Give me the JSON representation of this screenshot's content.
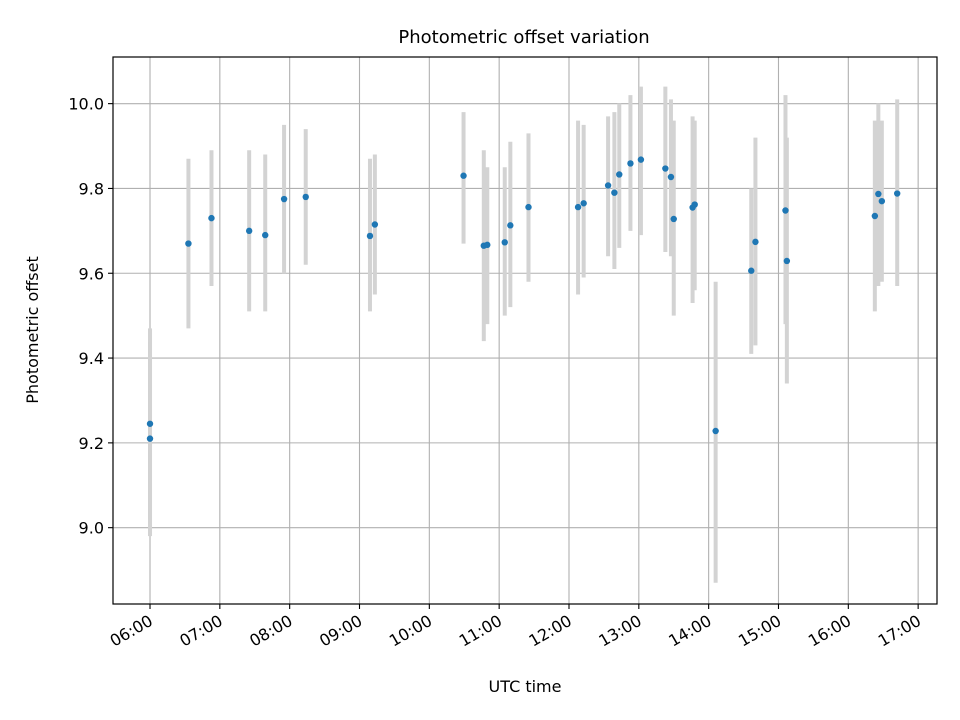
{
  "chart_data": {
    "type": "scatter",
    "title": "Photometric offset variation",
    "xlabel": "UTC time",
    "ylabel": "Photometric offset",
    "x_unit": "hours UTC",
    "xlim": [
      5.47,
      17.27
    ],
    "ylim": [
      8.82,
      10.11
    ],
    "x_ticks": [
      6,
      7,
      8,
      9,
      10,
      11,
      12,
      13,
      14,
      15,
      16,
      17
    ],
    "x_tick_labels": [
      "06:00",
      "07:00",
      "08:00",
      "09:00",
      "10:00",
      "11:00",
      "12:00",
      "13:00",
      "14:00",
      "15:00",
      "16:00",
      "17:00"
    ],
    "y_ticks": [
      9.0,
      9.2,
      9.4,
      9.6,
      9.8,
      10.0
    ],
    "y_tick_labels": [
      "9.0",
      "9.2",
      "9.4",
      "9.6",
      "9.8",
      "10.0"
    ],
    "grid": true,
    "colors": {
      "point": "#1f77b4",
      "errorbar": "#d3d3d3",
      "grid": "#b0b0b0"
    },
    "series": [
      {
        "points": [
          {
            "x": 6.0,
            "y": 9.245,
            "lo": 9.02,
            "hi": 9.47
          },
          {
            "x": 6.0,
            "y": 9.21,
            "lo": 8.98,
            "hi": 9.44
          },
          {
            "x": 6.55,
            "y": 9.67,
            "lo": 9.47,
            "hi": 9.87
          },
          {
            "x": 6.88,
            "y": 9.73,
            "lo": 9.57,
            "hi": 9.89
          },
          {
            "x": 7.42,
            "y": 9.7,
            "lo": 9.51,
            "hi": 9.89
          },
          {
            "x": 7.65,
            "y": 9.69,
            "lo": 9.51,
            "hi": 9.88
          },
          {
            "x": 7.92,
            "y": 9.775,
            "lo": 9.6,
            "hi": 9.95
          },
          {
            "x": 8.23,
            "y": 9.78,
            "lo": 9.62,
            "hi": 9.94
          },
          {
            "x": 9.15,
            "y": 9.688,
            "lo": 9.51,
            "hi": 9.87
          },
          {
            "x": 9.22,
            "y": 9.715,
            "lo": 9.55,
            "hi": 9.88
          },
          {
            "x": 10.49,
            "y": 9.83,
            "lo": 9.67,
            "hi": 9.98
          },
          {
            "x": 10.78,
            "y": 9.665,
            "lo": 9.44,
            "hi": 9.89
          },
          {
            "x": 10.83,
            "y": 9.667,
            "lo": 9.48,
            "hi": 9.85
          },
          {
            "x": 11.08,
            "y": 9.673,
            "lo": 9.5,
            "hi": 9.85
          },
          {
            "x": 11.16,
            "y": 9.713,
            "lo": 9.52,
            "hi": 9.91
          },
          {
            "x": 11.42,
            "y": 9.756,
            "lo": 9.58,
            "hi": 9.93
          },
          {
            "x": 12.13,
            "y": 9.756,
            "lo": 9.55,
            "hi": 9.96
          },
          {
            "x": 12.21,
            "y": 9.765,
            "lo": 9.59,
            "hi": 9.95
          },
          {
            "x": 12.56,
            "y": 9.807,
            "lo": 9.64,
            "hi": 9.97
          },
          {
            "x": 12.65,
            "y": 9.79,
            "lo": 9.61,
            "hi": 9.98
          },
          {
            "x": 12.72,
            "y": 9.833,
            "lo": 9.66,
            "hi": 10.0
          },
          {
            "x": 12.88,
            "y": 9.859,
            "lo": 9.7,
            "hi": 10.02
          },
          {
            "x": 13.03,
            "y": 9.868,
            "lo": 9.69,
            "hi": 10.04
          },
          {
            "x": 13.38,
            "y": 9.847,
            "lo": 9.65,
            "hi": 10.04
          },
          {
            "x": 13.46,
            "y": 9.827,
            "lo": 9.64,
            "hi": 10.01
          },
          {
            "x": 13.5,
            "y": 9.728,
            "lo": 9.5,
            "hi": 9.96
          },
          {
            "x": 13.77,
            "y": 9.755,
            "lo": 9.53,
            "hi": 9.97
          },
          {
            "x": 13.8,
            "y": 9.762,
            "lo": 9.56,
            "hi": 9.96
          },
          {
            "x": 14.1,
            "y": 9.228,
            "lo": 8.87,
            "hi": 9.58
          },
          {
            "x": 14.61,
            "y": 9.606,
            "lo": 9.41,
            "hi": 9.8
          },
          {
            "x": 14.67,
            "y": 9.674,
            "lo": 9.43,
            "hi": 9.92
          },
          {
            "x": 15.1,
            "y": 9.748,
            "lo": 9.48,
            "hi": 10.02
          },
          {
            "x": 15.12,
            "y": 9.629,
            "lo": 9.34,
            "hi": 9.92
          },
          {
            "x": 16.38,
            "y": 9.735,
            "lo": 9.51,
            "hi": 9.96
          },
          {
            "x": 16.43,
            "y": 9.787,
            "lo": 9.57,
            "hi": 10.0
          },
          {
            "x": 16.48,
            "y": 9.77,
            "lo": 9.58,
            "hi": 9.96
          },
          {
            "x": 16.7,
            "y": 9.788,
            "lo": 9.57,
            "hi": 10.01
          }
        ]
      }
    ]
  }
}
